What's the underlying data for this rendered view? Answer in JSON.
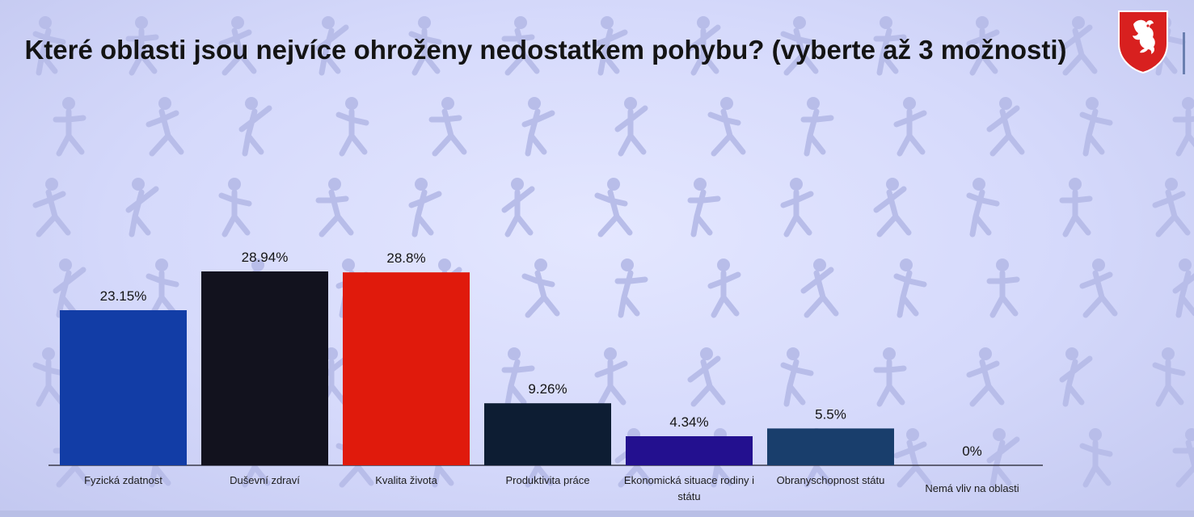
{
  "title": "Které oblasti jsou nejvíce ohroženy nedostatkem pohybu? (vyberte až 3 možnosti)",
  "emblem": {
    "icon": "czech-lion-emblem-icon",
    "colors": {
      "shield": "#d8201f",
      "lion": "#ffffff"
    }
  },
  "colors": {
    "background": "#dcdffc",
    "pattern": "#b8bde9"
  },
  "chart_data": {
    "type": "bar",
    "categories": [
      "Fyzická zdatnost",
      "Duševní zdraví",
      "Kvalita života",
      "Produktivita práce",
      "Ekonomická situace rodiny i státu",
      "Obranyschopnost státu",
      "Nemá vliv na oblasti"
    ],
    "values": [
      23.15,
      28.94,
      28.8,
      9.26,
      4.34,
      5.5,
      0
    ],
    "value_labels": [
      "23.15%",
      "28.94%",
      "28.8%",
      "9.26%",
      "4.34%",
      "5.5%",
      "0%"
    ],
    "colors": [
      "#123da6",
      "#12121e",
      "#e01a0c",
      "#0d1d33",
      "#23108f",
      "#193e6c",
      "#8c8c8c"
    ],
    "title": "Které oblasti jsou nejvíce ohroženy nedostatkem pohybu? (vyberte až 3 možnosti)",
    "xlabel": "",
    "ylabel": "",
    "ylim": [
      0,
      30
    ],
    "grid": false,
    "legend": "none"
  }
}
